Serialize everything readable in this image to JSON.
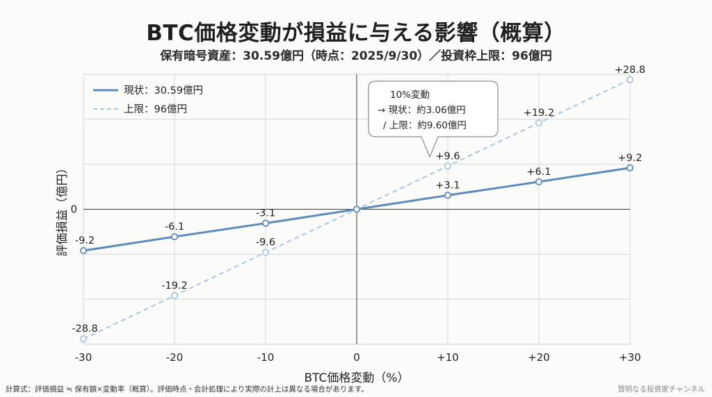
{
  "title": "BTC価格変動が損益に与える影響（概算）",
  "subtitle": "保有暗号資産：30.59億円（時点：2025/9/30）／投資枠上限：96億円",
  "callout": {
    "line1": "10%変動",
    "line2": "→ 現状：約3.06億円",
    "line3": "/ 上限：約9.60億円"
  },
  "footnote": "計算式：評価損益 ≒ 保有額×変動率（概算）。評価時点・会計処理により実際の計上は異なる場合があります。",
  "channel": "賢明なる投資家チャンネル",
  "chart_data": {
    "type": "line",
    "title": "BTC価格変動が損益に与える影響（概算）",
    "xlabel": "BTC価格変動（%）",
    "ylabel": "評価損益（億円）",
    "x": [
      -30,
      -20,
      -10,
      0,
      10,
      20,
      30
    ],
    "x_tick_labels": [
      "-30",
      "-20",
      "-10",
      "0",
      "+10",
      "+20",
      "+30"
    ],
    "y_tick_labels": [
      "0"
    ],
    "xlim": [
      -30,
      30
    ],
    "ylim": [
      -30,
      30
    ],
    "grid": true,
    "legend_position": "top-left",
    "series": [
      {
        "name": "現状：30.59億円",
        "style": "solid",
        "color": "#5b8bbd",
        "values": [
          -9.2,
          -6.1,
          -3.1,
          0,
          3.1,
          6.1,
          9.2
        ],
        "labels": [
          "-9.2",
          "-6.1",
          "-3.1",
          "",
          "+3.1",
          "+6.1",
          "+9.2"
        ]
      },
      {
        "name": "上限：96億円",
        "style": "dashed",
        "color": "#a6c6e6",
        "values": [
          -28.8,
          -19.2,
          -9.6,
          0,
          9.6,
          19.2,
          28.8
        ],
        "labels": [
          "-28.8",
          "-19.2",
          "-9.6",
          "",
          "+9.6",
          "+19.2",
          "+28.8"
        ]
      }
    ]
  }
}
